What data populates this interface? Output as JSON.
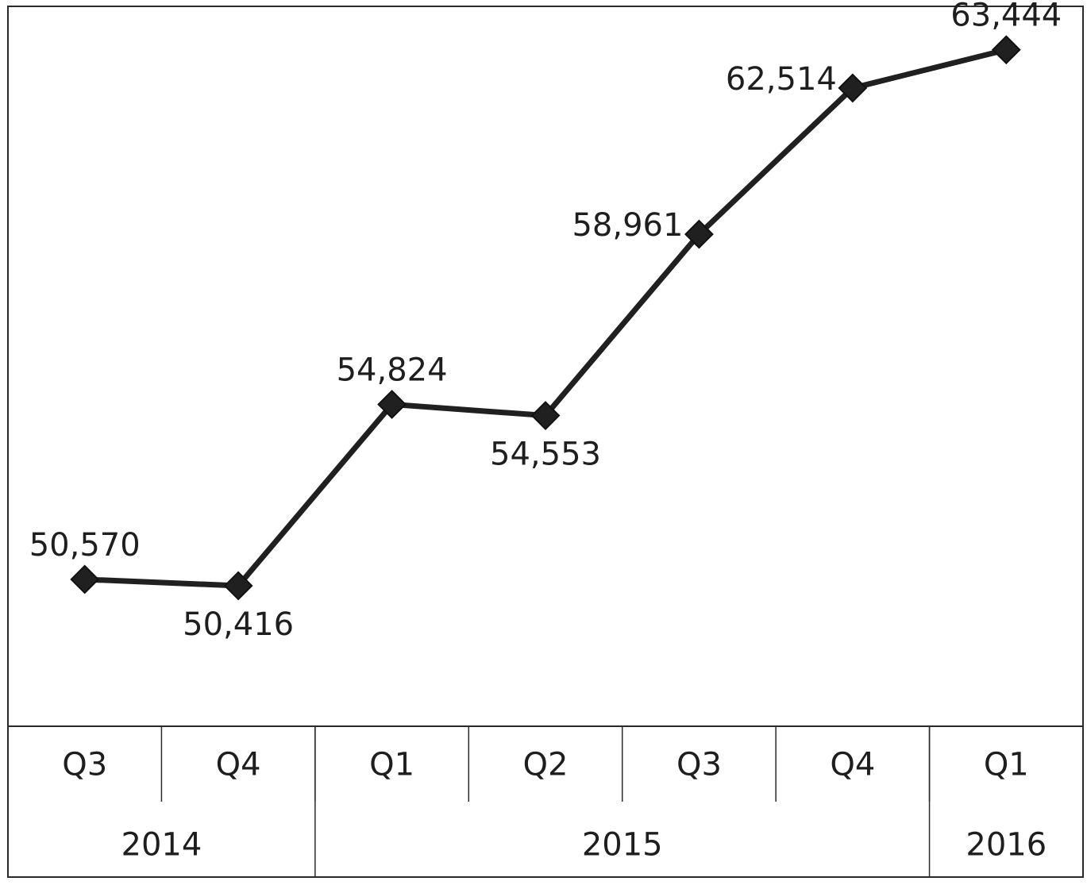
{
  "chart_data": {
    "type": "line",
    "title": "",
    "xlabel": "",
    "ylabel": "",
    "grid": false,
    "legend": "none",
    "categories": [
      "Q3",
      "Q4",
      "Q1",
      "Q2",
      "Q3",
      "Q4",
      "Q1"
    ],
    "groups": [
      {
        "label": "2014",
        "span": 2
      },
      {
        "label": "2015",
        "span": 4
      },
      {
        "label": "2016",
        "span": 1
      }
    ],
    "series": [
      {
        "values": [
          50570,
          50416,
          54824,
          54553,
          58961,
          62514,
          63444
        ],
        "value_labels": [
          "50,570",
          "50,416",
          "54,824",
          "54,553",
          "58,961",
          "62,514",
          "63,444"
        ],
        "label_positions": [
          "above",
          "below",
          "above",
          "below",
          "left",
          "left",
          "above"
        ],
        "color": "#202020",
        "marker": "diamond"
      }
    ],
    "ylim": [
      47000,
      64500
    ]
  }
}
